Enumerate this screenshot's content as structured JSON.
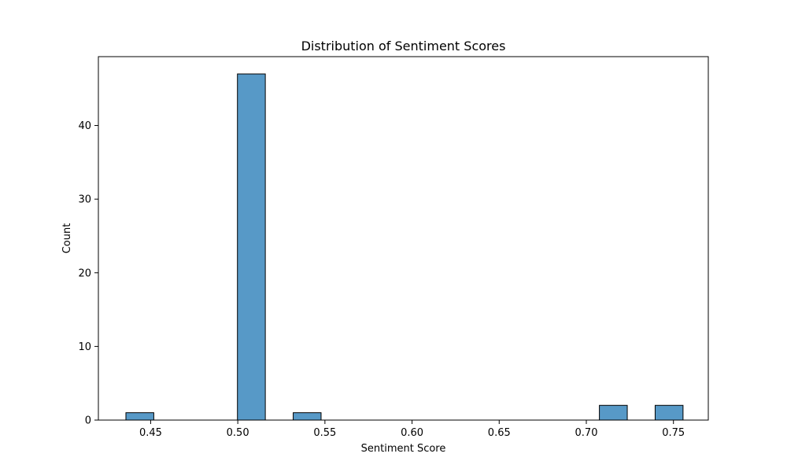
{
  "colors": {
    "bar_fill": "#5799c7",
    "bar_edge": "#000000",
    "axis": "#000000",
    "background": "#ffffff"
  },
  "chart_data": {
    "type": "bar",
    "title": "Distribution of Sentiment Scores",
    "xlabel": "Sentiment Score",
    "ylabel": "Count",
    "xlim": [
      0.42,
      0.77
    ],
    "ylim": [
      0,
      49.35
    ],
    "x_ticks": [
      0.45,
      0.5,
      0.55,
      0.6,
      0.65,
      0.7,
      0.75
    ],
    "x_tick_labels": [
      "0.45",
      "0.50",
      "0.55",
      "0.60",
      "0.65",
      "0.70",
      "0.75"
    ],
    "y_ticks": [
      0,
      10,
      20,
      30,
      40
    ],
    "y_tick_labels": [
      "0",
      "10",
      "20",
      "30",
      "40"
    ],
    "bins": [
      {
        "start": 0.4358,
        "end": 0.4518,
        "count": 1
      },
      {
        "start": 0.4998,
        "end": 0.5158,
        "count": 47
      },
      {
        "start": 0.5318,
        "end": 0.5478,
        "count": 1
      },
      {
        "start": 0.7075,
        "end": 0.7235,
        "count": 2
      },
      {
        "start": 0.7395,
        "end": 0.7555,
        "count": 2
      }
    ],
    "grid": false,
    "legend": null
  }
}
